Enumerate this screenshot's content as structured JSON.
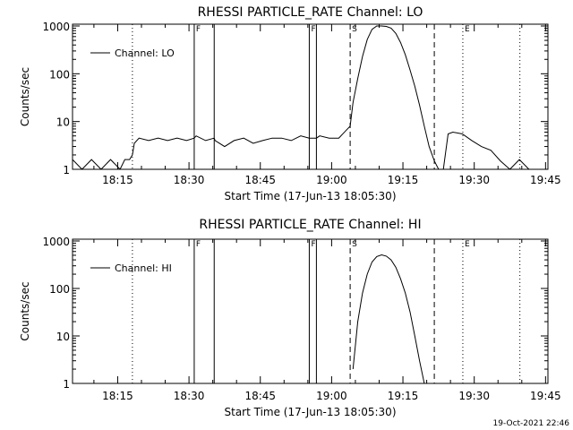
{
  "footer_timestamp": "19-Oct-2021 22:46",
  "chart_data": [
    {
      "type": "line",
      "title": "RHESSI PARTICLE_RATE Channel: LO",
      "xlabel": "Start Time (17-Jun-13 18:05:30)",
      "ylabel": "Counts/sec",
      "x_unit": "minutes since 18:05:30",
      "xlim": [
        0,
        100
      ],
      "ylim": [
        1,
        1000
      ],
      "yscale": "log",
      "x_ticks": [
        {
          "x": 9.5,
          "label": "18:15"
        },
        {
          "x": 24.5,
          "label": "18:30"
        },
        {
          "x": 39.5,
          "label": "18:45"
        },
        {
          "x": 54.5,
          "label": "19:00"
        },
        {
          "x": 69.5,
          "label": "19:15"
        },
        {
          "x": 84.5,
          "label": "19:30"
        },
        {
          "x": 99.5,
          "label": "19:45"
        }
      ],
      "y_ticks": [
        {
          "y": 1,
          "label": "1"
        },
        {
          "y": 10,
          "label": "10"
        },
        {
          "y": 100,
          "label": "100"
        },
        {
          "y": 1000,
          "label": "1000"
        }
      ],
      "legend": {
        "placement": "top-left",
        "label": "Channel: LO"
      },
      "markers": [
        {
          "x": 12.6,
          "style": "dotted",
          "label": ""
        },
        {
          "x": 25.6,
          "style": "solid",
          "label": "F"
        },
        {
          "x": 29.8,
          "style": "solid",
          "label": ""
        },
        {
          "x": 49.8,
          "style": "solid",
          "label": "F"
        },
        {
          "x": 51.3,
          "style": "solid",
          "label": ""
        },
        {
          "x": 58.4,
          "style": "dashed",
          "label": "S"
        },
        {
          "x": 76.1,
          "style": "dashed",
          "label": ""
        },
        {
          "x": 82.1,
          "style": "dotted",
          "label": "E"
        },
        {
          "x": 94.1,
          "style": "dotted",
          "label": ""
        }
      ],
      "series": [
        {
          "name": "Channel: LO",
          "x": [
            0,
            2,
            4,
            6,
            8,
            10,
            11,
            12,
            12.6,
            13,
            14,
            16,
            18,
            20,
            22,
            24,
            25.6,
            26,
            28,
            29.8,
            30,
            32,
            34,
            36,
            38,
            40,
            42,
            44,
            46,
            48,
            49.8,
            50,
            51.3,
            52,
            54,
            56,
            58.4,
            59,
            60,
            61,
            62,
            63,
            64,
            65,
            66,
            67,
            68,
            69,
            70,
            71,
            72,
            73,
            74,
            75,
            76.1,
            77,
            78,
            79,
            80,
            82,
            84,
            86,
            88,
            90,
            92,
            94,
            96
          ],
          "y": [
            1.6,
            1.0,
            1.6,
            1.0,
            1.6,
            1.0,
            1.6,
            1.6,
            2.0,
            3.5,
            4.5,
            4.0,
            4.5,
            4.0,
            4.5,
            4.0,
            4.5,
            5.0,
            4.0,
            4.5,
            4.0,
            3.0,
            4.0,
            4.5,
            3.5,
            4.0,
            4.5,
            4.5,
            4.0,
            5.0,
            4.5,
            4.5,
            4.5,
            5.0,
            4.5,
            4.5,
            8,
            25,
            80,
            230,
            520,
            850,
            1000,
            1000,
            980,
            900,
            700,
            450,
            250,
            120,
            55,
            22,
            8,
            3,
            1.5,
            1.0,
            1.0,
            5.5,
            6.0,
            5.5,
            4.0,
            3.0,
            2.5,
            1.5,
            1.0,
            1.6,
            1.0
          ]
        }
      ]
    },
    {
      "type": "line",
      "title": "RHESSI PARTICLE_RATE Channel: HI",
      "xlabel": "Start Time (17-Jun-13 18:05:30)",
      "ylabel": "Counts/sec",
      "x_unit": "minutes since 18:05:30",
      "xlim": [
        0,
        100
      ],
      "ylim": [
        1,
        1000
      ],
      "yscale": "log",
      "x_ticks": [
        {
          "x": 9.5,
          "label": "18:15"
        },
        {
          "x": 24.5,
          "label": "18:30"
        },
        {
          "x": 39.5,
          "label": "18:45"
        },
        {
          "x": 54.5,
          "label": "19:00"
        },
        {
          "x": 69.5,
          "label": "19:15"
        },
        {
          "x": 84.5,
          "label": "19:30"
        },
        {
          "x": 99.5,
          "label": "19:45"
        }
      ],
      "y_ticks": [
        {
          "y": 1,
          "label": "1"
        },
        {
          "y": 10,
          "label": "10"
        },
        {
          "y": 100,
          "label": "100"
        },
        {
          "y": 1000,
          "label": "1000"
        }
      ],
      "legend": {
        "placement": "top-left",
        "label": "Channel: HI"
      },
      "markers": [
        {
          "x": 12.6,
          "style": "dotted",
          "label": ""
        },
        {
          "x": 25.6,
          "style": "solid",
          "label": "F"
        },
        {
          "x": 29.8,
          "style": "solid",
          "label": ""
        },
        {
          "x": 49.8,
          "style": "solid",
          "label": "F"
        },
        {
          "x": 51.3,
          "style": "solid",
          "label": ""
        },
        {
          "x": 58.4,
          "style": "dashed",
          "label": "S"
        },
        {
          "x": 76.1,
          "style": "dashed",
          "label": ""
        },
        {
          "x": 82.1,
          "style": "dotted",
          "label": "E"
        },
        {
          "x": 94.1,
          "style": "dotted",
          "label": ""
        }
      ],
      "series": [
        {
          "name": "Channel: HI",
          "x": [
            59,
            60,
            61,
            62,
            63,
            64,
            65,
            66,
            67,
            68,
            69,
            70,
            71,
            72,
            73,
            74
          ],
          "y": [
            2,
            20,
            80,
            200,
            360,
            470,
            510,
            480,
            400,
            280,
            160,
            80,
            32,
            10,
            3,
            1
          ]
        }
      ]
    }
  ]
}
